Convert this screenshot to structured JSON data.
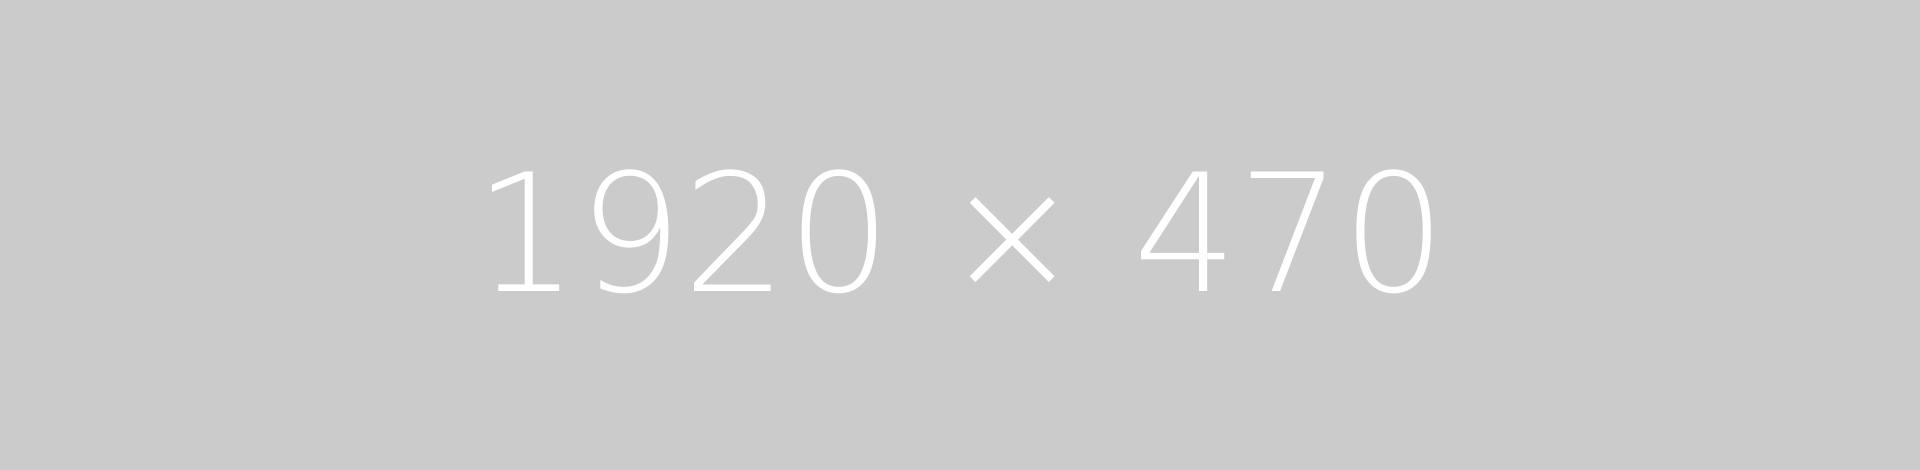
{
  "placeholder": {
    "label": "1920 × 470",
    "background_color": "#cbcbcb",
    "text_color": "#ffffff"
  }
}
